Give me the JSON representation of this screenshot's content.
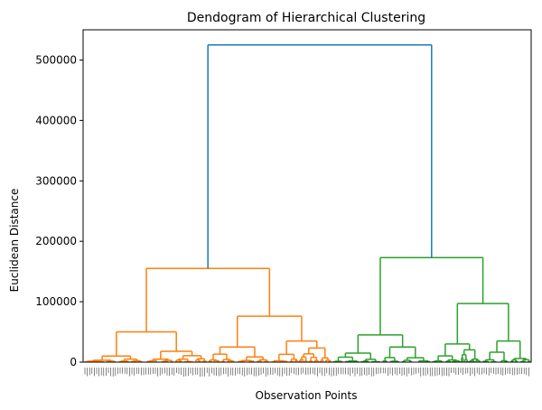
{
  "chart_data": {
    "type": "dendrogram",
    "title": "Dendogram of Hierarchical Clustering",
    "xlabel": "Observation Points",
    "ylabel": "Euclidean Distance",
    "ylim": [
      0,
      550000
    ],
    "yticks": [
      0,
      100000,
      200000,
      300000,
      400000,
      500000
    ],
    "colors": {
      "root": "#1f77b4",
      "cluster_1": "#ff7f0e",
      "cluster_2": "#2ca02c"
    },
    "root": {
      "height": 525000
    },
    "clusters": [
      {
        "name": "cluster_1",
        "height": 155000,
        "left": {
          "height": 50000,
          "left": {
            "height": 10000
          },
          "right": {
            "height": 18000
          }
        },
        "right": {
          "height": 76000,
          "left": {
            "height": 25000
          },
          "right": {
            "height": 35000
          }
        }
      },
      {
        "name": "cluster_2",
        "height": 173000,
        "left": {
          "height": 45000,
          "left": {
            "height": 15000
          },
          "right": {
            "height": 25000
          }
        },
        "right": {
          "height": 97000,
          "left": {
            "height": 30000
          },
          "right": {
            "height": 35000
          }
        }
      }
    ]
  }
}
